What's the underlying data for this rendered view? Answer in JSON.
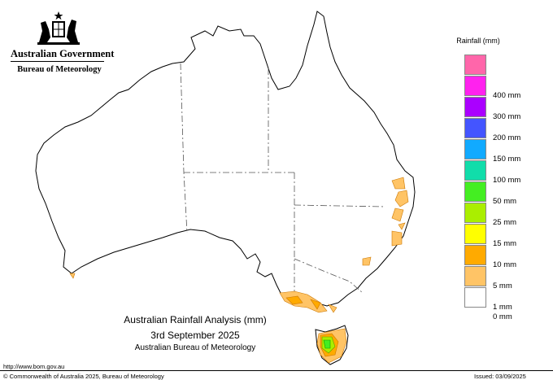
{
  "header": {
    "gov_name": "Australian Government",
    "agency": "Bureau of Meteorology"
  },
  "legend": {
    "title": "Rainfall (mm)",
    "bins": [
      {
        "color": "#ff66aa",
        "label": ""
      },
      {
        "color": "#ff22ee",
        "label": "400 mm"
      },
      {
        "color": "#aa00ff",
        "label": "300 mm"
      },
      {
        "color": "#4455ff",
        "label": "200 mm"
      },
      {
        "color": "#11aaff",
        "label": "150 mm"
      },
      {
        "color": "#11ddaa",
        "label": "100 mm"
      },
      {
        "color": "#44ee22",
        "label": "50 mm"
      },
      {
        "color": "#aaee00",
        "label": "25 mm"
      },
      {
        "color": "#ffff00",
        "label": "15 mm"
      },
      {
        "color": "#ffaa00",
        "label": "10 mm"
      },
      {
        "color": "#ffc466",
        "label": "5 mm"
      },
      {
        "color": "#ffffff",
        "label": "1 mm"
      }
    ],
    "bottom_label": "0 mm"
  },
  "map_title": {
    "line1": "Australian Rainfall Analysis (mm)",
    "line2": "3rd September 2025",
    "line3": "Australian Bureau of Meteorology"
  },
  "footer": {
    "url": "http://www.bom.gov.au",
    "copyright": "© Commonwealth of Australia 2025, Bureau of Meteorology",
    "issued": "Issued: 03/09/2025"
  },
  "colors": {
    "light_rain": "#ffc466",
    "moderate_rain": "#ffaa00",
    "heavy_rain": "#44ee22",
    "mid_rain": "#aaee00"
  }
}
